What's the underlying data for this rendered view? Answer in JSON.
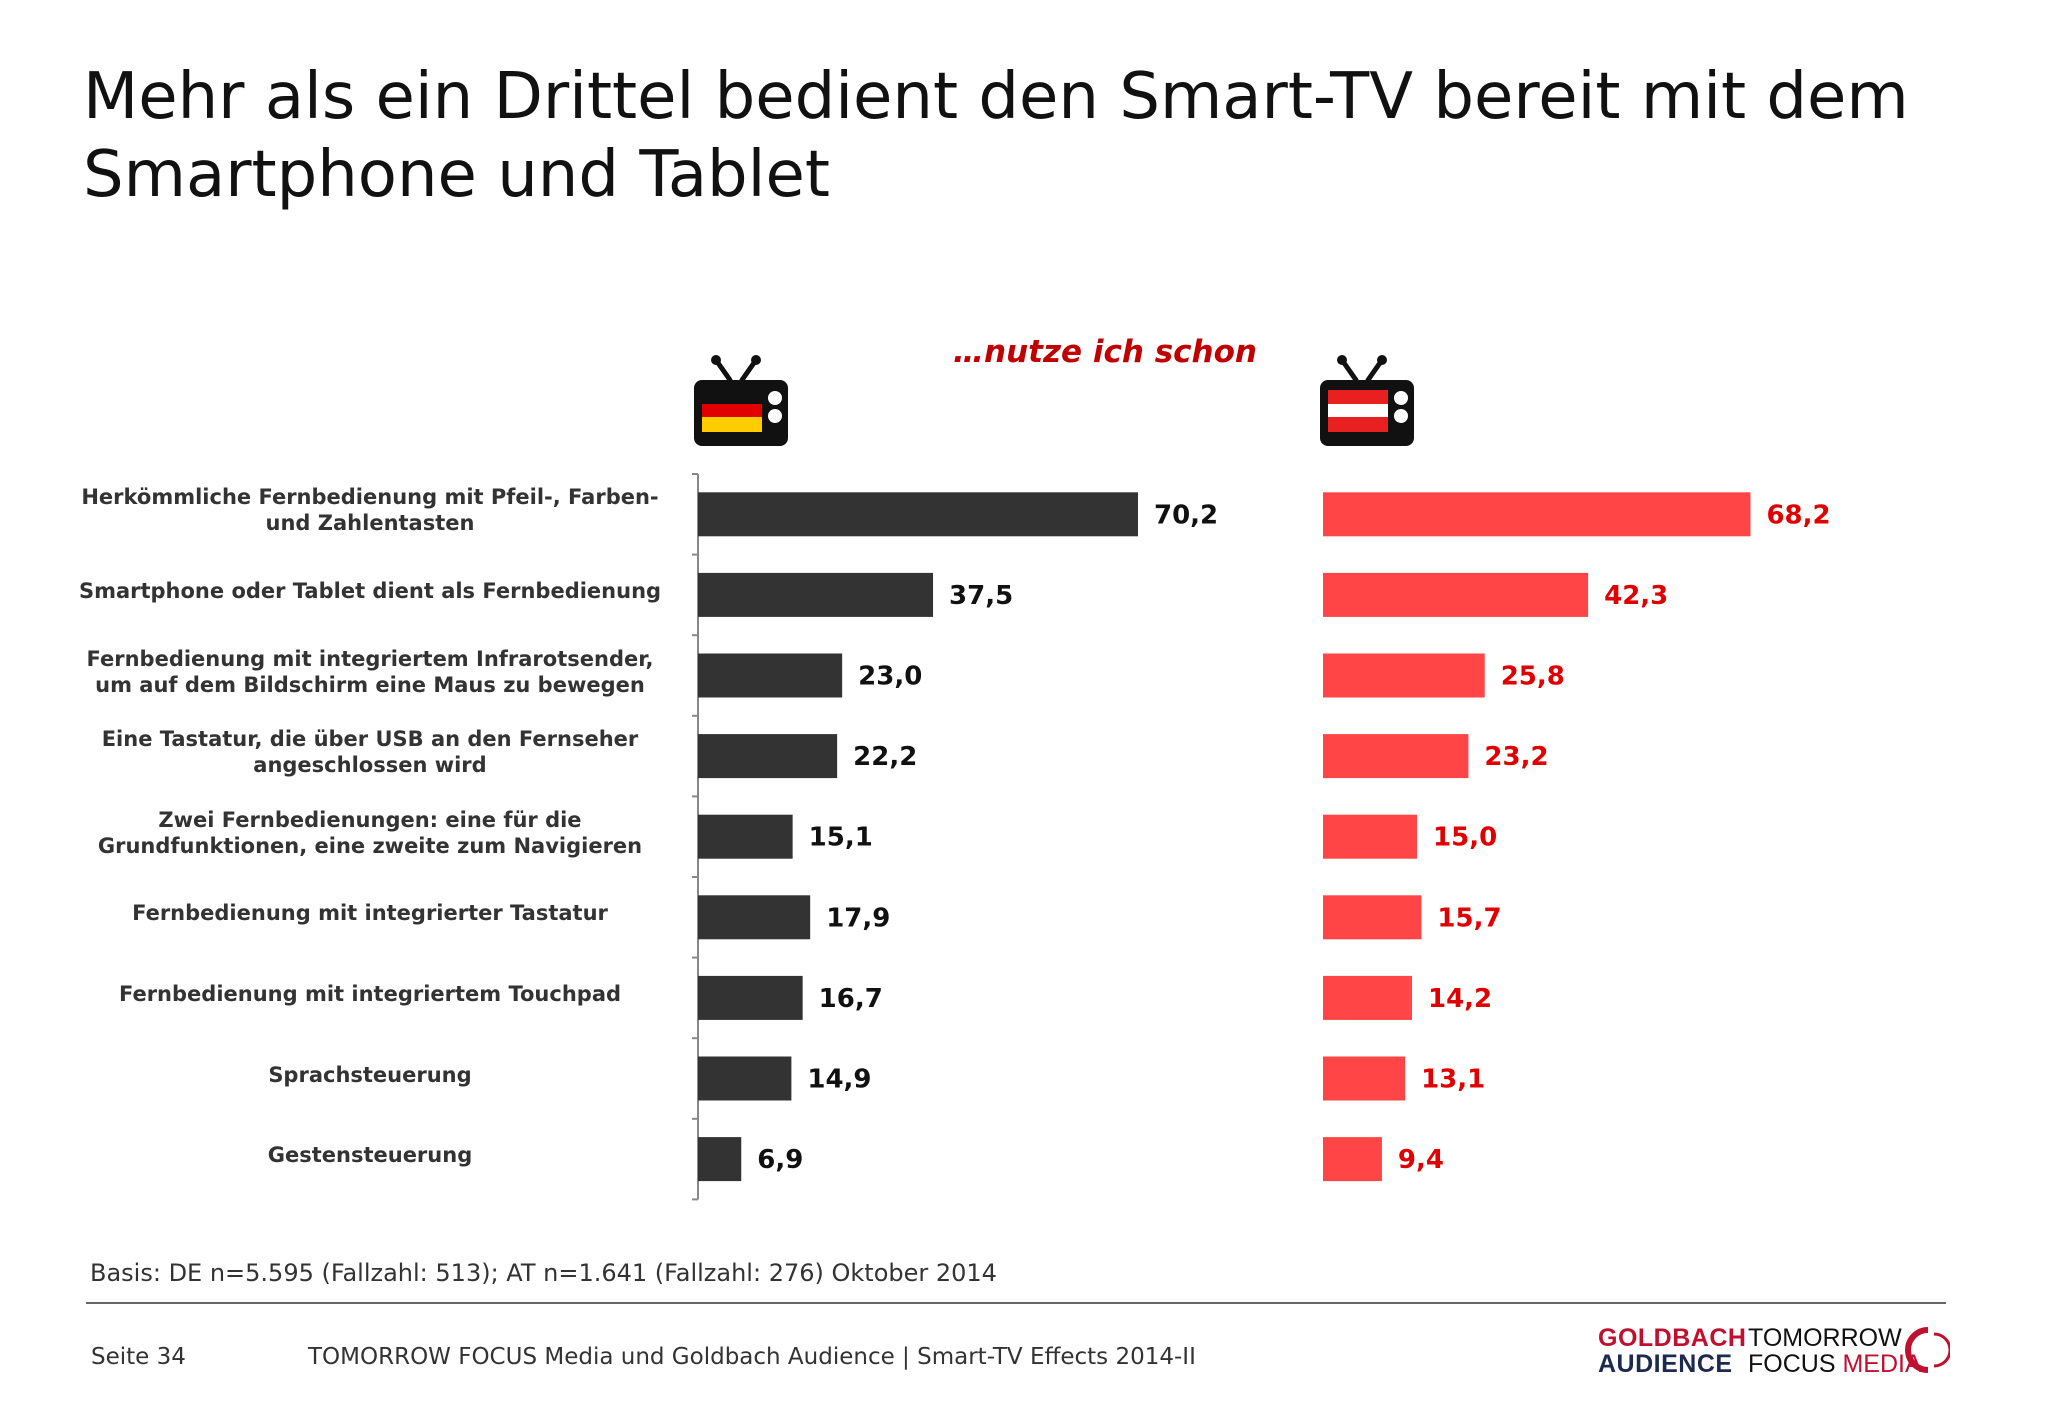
{
  "title": "Mehr als ein Drittel bedient den Smart-TV bereit mit dem Smartphone und Tablet",
  "subtitle": "…nutze ich schon",
  "icons": {
    "left": "tv-germany-flag-icon",
    "right": "tv-austria-flag-icon"
  },
  "colors": {
    "de_bar": "#333333",
    "at_bar": "#ff4545",
    "at_label": "#e00000",
    "accent": "#c00000"
  },
  "basis": "Basis: DE n=5.595 (Fallzahl: 513); AT n=1.641 (Fallzahl: 276) Oktober 2014",
  "footer": {
    "page": "Seite 34",
    "text": "TOMORROW FOCUS Media und Goldbach Audience | Smart-TV Effects 2014-II",
    "logo_goldbach_line1": "GOLDBACH",
    "logo_goldbach_line2": "AUDIENCE",
    "logo_tf_line1": "TOMORROW",
    "logo_tf_focus": "FOCUS",
    "logo_tf_media": "MEDIA"
  },
  "chart_data": {
    "type": "bar",
    "orientation": "horizontal",
    "title": "…nutze ich schon",
    "categories": [
      "Herkömmliche Fernbedienung mit Pfeil-, Farben-\nund Zahlentasten",
      "Smartphone oder Tablet dient als Fernbedienung",
      "Fernbedienung mit integriertem Infrarotsender,\num auf dem Bildschirm eine Maus zu bewegen",
      "Eine Tastatur, die über USB an den Fernseher\nangeschlossen wird",
      "Zwei Fernbedienungen: eine für die\nGrundfunktionen, eine zweite zum Navigieren",
      "Fernbedienung mit integrierter Tastatur",
      "Fernbedienung mit integriertem Touchpad",
      "Sprachsteuerung",
      "Gestensteuerung"
    ],
    "series": [
      {
        "values": [
          70.2,
          37.5,
          23.0,
          22.2,
          15.1,
          17.9,
          16.7,
          14.9,
          6.9
        ],
        "labels": [
          "70,2",
          "37,5",
          "23,0",
          "22,2",
          "15,1",
          "17,9",
          "16,7",
          "14,9",
          "6,9"
        ],
        "color": "#333333",
        "label_color": "#111111",
        "icon": "tv-germany-flag-icon"
      },
      {
        "values": [
          68.2,
          42.3,
          25.8,
          23.2,
          15.0,
          15.7,
          14.2,
          13.1,
          9.4
        ],
        "labels": [
          "68,2",
          "42,3",
          "25,8",
          "23,2",
          "15,0",
          "15,7",
          "14,2",
          "13,1",
          "9,4"
        ],
        "color": "#ff4545",
        "label_color": "#e00000",
        "icon": "tv-austria-flag-icon"
      }
    ],
    "xlim": [
      0,
      100
    ],
    "grid": false,
    "legend": "none"
  }
}
